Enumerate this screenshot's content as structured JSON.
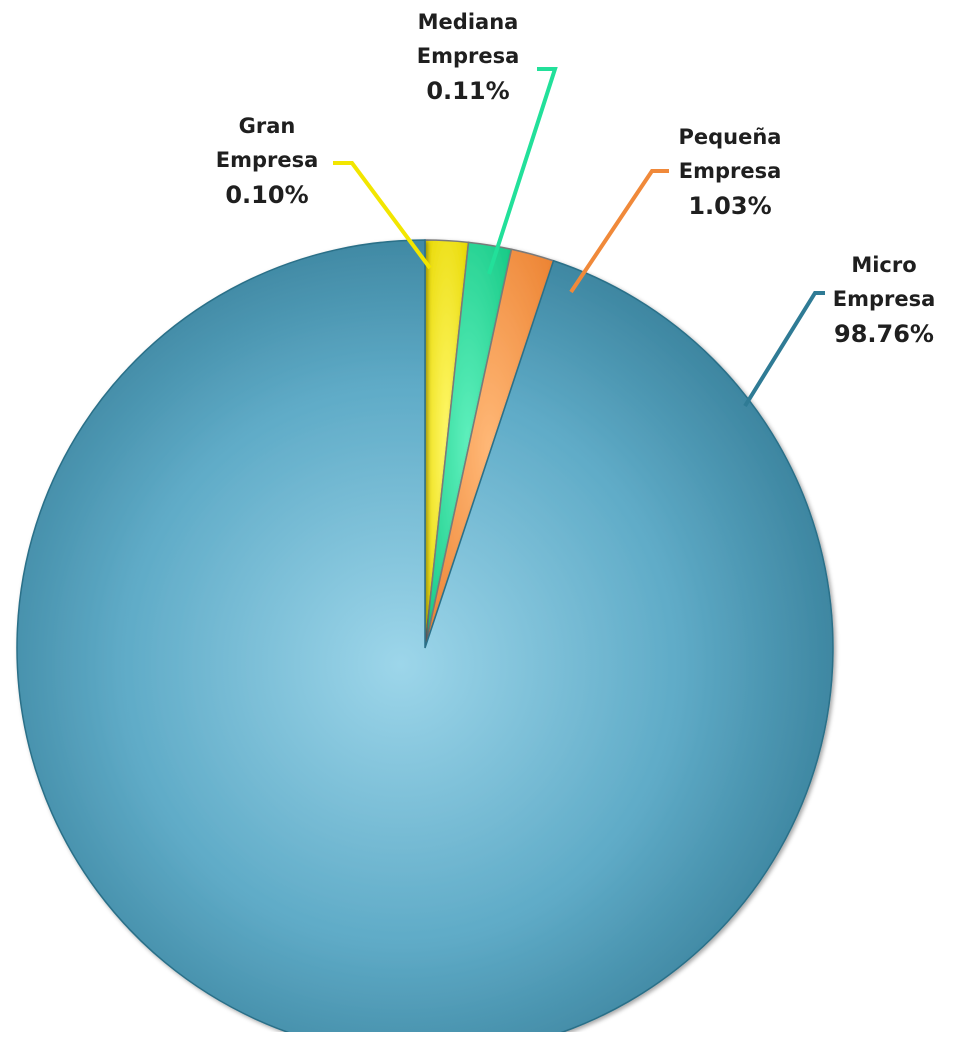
{
  "chart_data": {
    "type": "pie",
    "slices": [
      {
        "name_line1": "Gran",
        "name_line2": "Empresa",
        "value": 0.1,
        "value_label": "0.10%",
        "color": "#f6ef1c"
      },
      {
        "name_line1": "Mediana",
        "name_line2": "Empresa",
        "value": 0.11,
        "value_label": "0.11%",
        "color": "#27e3a0"
      },
      {
        "name_line1": "Pequeña",
        "name_line2": "Empresa",
        "value": 1.03,
        "value_label": "1.03%",
        "color": "#f59a4d"
      },
      {
        "name_line1": "Micro",
        "name_line2": "Empresa",
        "value": 98.76,
        "value_label": "98.76%",
        "color": "#3a8aa6"
      }
    ],
    "legend": "none",
    "data_labels": "outside-with-leader-lines"
  }
}
